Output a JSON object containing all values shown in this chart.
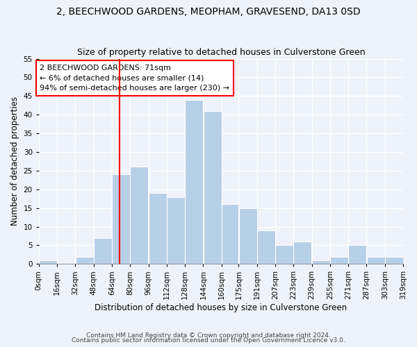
{
  "title": "2, BEECHWOOD GARDENS, MEOPHAM, GRAVESEND, DA13 0SD",
  "subtitle": "Size of property relative to detached houses in Culverstone Green",
  "xlabel": "Distribution of detached houses by size in Culverstone Green",
  "ylabel": "Number of detached properties",
  "footnote1": "Contains HM Land Registry data © Crown copyright and database right 2024.",
  "footnote2": "Contains public sector information licensed under the Open Government Licence v3.0.",
  "bin_edges": [
    0,
    16,
    32,
    48,
    64,
    80,
    96,
    112,
    128,
    144,
    160,
    175,
    191,
    207,
    223,
    239,
    255,
    271,
    287,
    303,
    319
  ],
  "bin_labels": [
    "0sqm",
    "16sqm",
    "32sqm",
    "48sqm",
    "64sqm",
    "80sqm",
    "96sqm",
    "112sqm",
    "128sqm",
    "144sqm",
    "160sqm",
    "175sqm",
    "191sqm",
    "207sqm",
    "223sqm",
    "239sqm",
    "255sqm",
    "271sqm",
    "287sqm",
    "303sqm",
    "319sqm"
  ],
  "counts": [
    1,
    0,
    2,
    7,
    24,
    26,
    19,
    18,
    44,
    41,
    16,
    15,
    9,
    5,
    6,
    1,
    2,
    5,
    2,
    2
  ],
  "bar_color": "#b8cfe8",
  "vline_x": 71,
  "vline_color": "red",
  "annotation_text": "2 BEECHWOOD GARDENS: 71sqm\n← 6% of detached houses are smaller (14)\n94% of semi-detached houses are larger (230) →",
  "annotation_box_color": "white",
  "annotation_box_edge": "red",
  "ylim": [
    0,
    55
  ],
  "yticks": [
    0,
    5,
    10,
    15,
    20,
    25,
    30,
    35,
    40,
    45,
    50,
    55
  ],
  "background_color": "#eef2fa",
  "grid_color": "white",
  "title_fontsize": 10,
  "subtitle_fontsize": 9,
  "axis_label_fontsize": 8.5,
  "tick_fontsize": 7.5,
  "annotation_fontsize": 8,
  "footnote_fontsize": 6.5
}
